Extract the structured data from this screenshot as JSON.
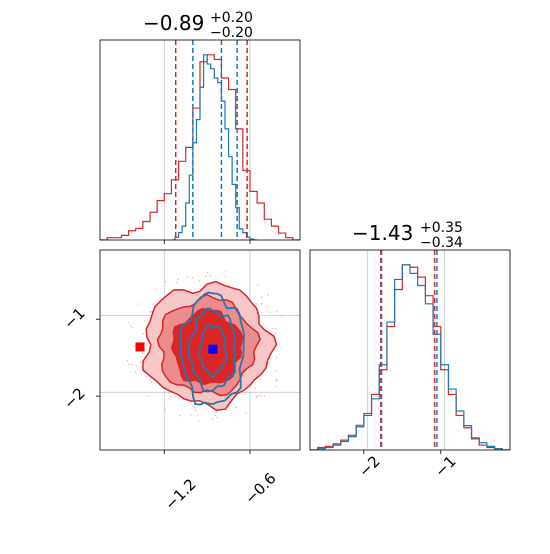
{
  "colors": {
    "red": "#d62728",
    "blue": "#1f77b4",
    "red_marker": "#ff0000",
    "blue_marker": "#0000ff",
    "grid": "#c8c8c8",
    "axes": "#000000"
  },
  "chart_data": [
    {
      "type": "histogram",
      "panel": "top-left",
      "parameter_index": 0,
      "title": {
        "median": "−0.89",
        "plus": "+0.20",
        "minus": "−0.20"
      },
      "xlim": [
        -1.65,
        -0.25
      ],
      "x_ticks": [
        -1.2,
        -0.6
      ],
      "x_tick_labels_shown": false,
      "grid_lines_x": [
        -1.2,
        -0.6
      ],
      "red_quantile_lines": [
        -1.12,
        -0.62
      ],
      "blue_quantile_lines": [
        -1.0,
        -0.69,
        -0.8
      ],
      "series": [
        {
          "name": "",
          "color": "red",
          "style": "step",
          "bin_width": 0.05,
          "bin_starts": [
            -1.65,
            -1.6,
            -1.55,
            -1.5,
            -1.45,
            -1.4,
            -1.35,
            -1.3,
            -1.25,
            -1.2,
            -1.15,
            -1.1,
            -1.05,
            -1.0,
            -0.95,
            -0.9,
            -0.85,
            -0.8,
            -0.75,
            -0.7,
            -0.65,
            -0.6,
            -0.55,
            -0.5,
            -0.45,
            -0.4,
            -0.35,
            -0.3
          ],
          "counts": [
            0,
            1,
            1,
            2,
            4,
            5,
            8,
            12,
            17,
            20,
            26,
            34,
            40,
            57,
            77,
            80,
            78,
            70,
            65,
            48,
            30,
            21,
            16,
            9,
            6,
            3,
            1,
            0
          ]
        },
        {
          "name": "",
          "color": "blue",
          "style": "step",
          "bin_width": 0.025,
          "bin_starts": [
            -1.15,
            -1.125,
            -1.1,
            -1.075,
            -1.05,
            -1.025,
            -1.0,
            -0.975,
            -0.95,
            -0.925,
            -0.9,
            -0.875,
            -0.85,
            -0.825,
            -0.8,
            -0.775,
            -0.75,
            -0.725,
            -0.7,
            -0.675,
            -0.65,
            -0.625,
            -0.6,
            -0.575
          ],
          "counts": [
            0,
            3,
            8,
            15,
            40,
            70,
            105,
            130,
            165,
            200,
            190,
            185,
            175,
            170,
            150,
            120,
            90,
            60,
            35,
            12,
            8,
            3,
            1,
            0
          ]
        }
      ]
    },
    {
      "type": "histogram",
      "panel": "bottom-right",
      "parameter_index": 1,
      "title": {
        "median": "−1.43",
        "plus": "+0.35",
        "minus": "−0.34"
      },
      "xlim": [
        -2.7,
        -0.1
      ],
      "x_ticks": [
        -2,
        -1
      ],
      "x_tick_labels": [
        "−2",
        "−1"
      ],
      "grid_lines_x": [
        -1.95,
        -0.95
      ],
      "red_quantile_lines": [
        -1.78,
        -1.08
      ],
      "blue_quantile_lines": [
        -1.77,
        -1.05
      ],
      "series": [
        {
          "name": "",
          "color": "red",
          "style": "step",
          "bin_width": 0.1,
          "bin_starts": [
            -2.7,
            -2.6,
            -2.5,
            -2.4,
            -2.3,
            -2.2,
            -2.1,
            -2.0,
            -1.9,
            -1.8,
            -1.7,
            -1.6,
            -1.5,
            -1.4,
            -1.3,
            -1.2,
            -1.1,
            -1.0,
            -0.9,
            -0.8,
            -0.7,
            -0.6,
            -0.5,
            -0.4,
            -0.3,
            -0.2
          ],
          "counts": [
            0,
            2,
            3,
            5,
            8,
            12,
            20,
            28,
            45,
            65,
            100,
            130,
            150,
            148,
            140,
            125,
            100,
            65,
            45,
            28,
            18,
            9,
            4,
            2,
            1,
            0
          ]
        },
        {
          "name": "",
          "color": "blue",
          "style": "step",
          "bin_width": 0.1,
          "bin_starts": [
            -2.7,
            -2.6,
            -2.5,
            -2.4,
            -2.3,
            -2.2,
            -2.1,
            -2.0,
            -1.9,
            -1.8,
            -1.7,
            -1.6,
            -1.5,
            -1.4,
            -1.3,
            -1.2,
            -1.1,
            -1.0,
            -0.9,
            -0.8,
            -0.7,
            -0.6,
            -0.5,
            -0.4,
            -0.3,
            -0.2
          ],
          "counts": [
            0,
            1,
            2,
            4,
            7,
            11,
            19,
            30,
            42,
            70,
            105,
            140,
            152,
            145,
            135,
            120,
            95,
            70,
            50,
            32,
            20,
            10,
            6,
            3,
            1,
            0
          ]
        }
      ]
    },
    {
      "type": "contour",
      "panel": "bottom-left",
      "xlim": [
        -1.65,
        -0.25
      ],
      "ylim": [
        -2.7,
        -0.1
      ],
      "x_ticks": [
        -1.2,
        -0.6
      ],
      "x_tick_labels": [
        "−1.2",
        "−0.6"
      ],
      "y_ticks": [
        -1,
        -2
      ],
      "y_tick_labels": [
        "−1",
        "−2"
      ],
      "grid_lines_x": [
        -1.2,
        -0.6
      ],
      "grid_lines_y": [
        -0.95,
        -1.95
      ],
      "grid": true,
      "red_levels": [
        {
          "level": "outer",
          "center": [
            -0.9,
            -1.33
          ],
          "radius_x": 0.44,
          "radius_y": 0.78,
          "fill": "#f7c6c6"
        },
        {
          "level": "middle",
          "center": [
            -0.9,
            -1.35
          ],
          "radius_x": 0.34,
          "radius_y": 0.62,
          "fill": "#ec8c8c"
        },
        {
          "level": "inner",
          "center": [
            -0.9,
            -1.37
          ],
          "radius_x": 0.24,
          "radius_y": 0.48,
          "fill": "#dc2626"
        }
      ],
      "blue_levels": [
        {
          "level": "outer",
          "center": [
            -0.86,
            -1.4
          ],
          "radius_x": 0.22,
          "radius_y": 0.72
        },
        {
          "level": "middle",
          "center": [
            -0.86,
            -1.4
          ],
          "radius_x": 0.16,
          "radius_y": 0.52
        },
        {
          "level": "inner",
          "center": [
            -0.86,
            -1.4
          ],
          "radius_x": 0.09,
          "radius_y": 0.32
        }
      ],
      "markers": [
        {
          "color": "red_marker",
          "x": -1.37,
          "y": -1.36
        },
        {
          "color": "blue_marker",
          "x": -0.86,
          "y": -1.39
        }
      ]
    }
  ]
}
